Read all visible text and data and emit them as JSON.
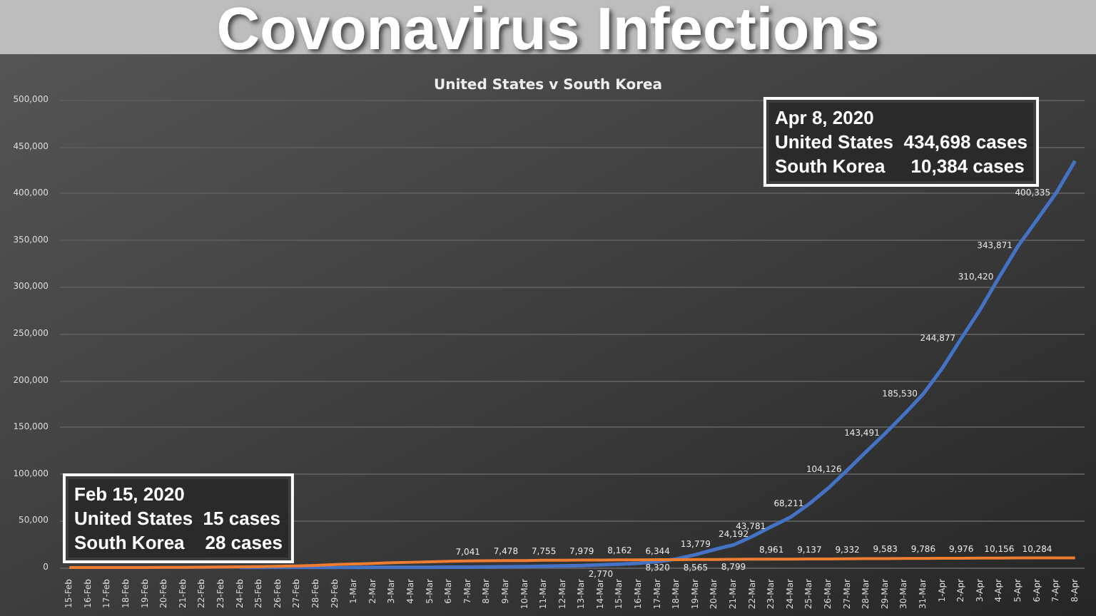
{
  "chart_data": {
    "type": "line",
    "title": "Covonavirus Infections",
    "subtitle": "United States v South Korea",
    "categories": [
      "15-Feb",
      "16-Feb",
      "17-Feb",
      "18-Feb",
      "19-Feb",
      "20-Feb",
      "21-Feb",
      "22-Feb",
      "23-Feb",
      "24-Feb",
      "25-Feb",
      "26-Feb",
      "27-Feb",
      "28-Feb",
      "29-Feb",
      "1-Mar",
      "2-Mar",
      "3-Mar",
      "4-Mar",
      "5-Mar",
      "6-Mar",
      "7-Mar",
      "8-Mar",
      "9-Mar",
      "10-Mar",
      "11-Mar",
      "12-Mar",
      "13-Mar",
      "14-Mar",
      "15-Mar",
      "16-Mar",
      "17-Mar",
      "18-Mar",
      "19-Mar",
      "20-Mar",
      "21-Mar",
      "22-Mar",
      "23-Mar",
      "24-Mar",
      "25-Mar",
      "26-Mar",
      "27-Mar",
      "28-Mar",
      "29-Mar",
      "30-Mar",
      "31-Mar",
      "1-Apr",
      "2-Apr",
      "3-Apr",
      "4-Apr",
      "5-Apr",
      "6-Apr",
      "7-Apr",
      "8-Apr"
    ],
    "series": [
      {
        "color": "#4472c4",
        "values": [
          null,
          null,
          null,
          null,
          null,
          null,
          null,
          null,
          null,
          53,
          53,
          59,
          60,
          62,
          70,
          76,
          101,
          122,
          153,
          221,
          319,
          435,
          541,
          704,
          994,
          1301,
          1630,
          2183,
          2770,
          3613,
          4596,
          6344,
          9197,
          13779,
          19273,
          24192,
          33276,
          43781,
          53740,
          68211,
          85000,
          104126,
          124000,
          143491,
          164000,
          185530,
          213000,
          244877,
          276000,
          310420,
          343871,
          372000,
          400335,
          434698
        ],
        "value_labels": [
          null,
          null,
          null,
          null,
          null,
          null,
          null,
          null,
          null,
          null,
          null,
          null,
          null,
          null,
          null,
          null,
          null,
          null,
          null,
          null,
          null,
          null,
          null,
          null,
          null,
          null,
          null,
          null,
          "2,770",
          null,
          null,
          "6,344",
          null,
          "13,779",
          null,
          "24,192",
          null,
          "43,781",
          null,
          "68,211",
          null,
          "104,126",
          null,
          "143,491",
          null,
          "185,530",
          null,
          "244,877",
          null,
          "310,420",
          "343,871",
          null,
          "400,335",
          null
        ]
      },
      {
        "color": "#ed7d31",
        "values": [
          28,
          29,
          30,
          31,
          51,
          104,
          204,
          433,
          602,
          833,
          977,
          1261,
          1766,
          2337,
          3150,
          3736,
          4335,
          5186,
          5621,
          6088,
          6593,
          7041,
          7314,
          7478,
          7513,
          7755,
          7869,
          7979,
          8086,
          8162,
          8236,
          8320,
          8413,
          8565,
          8652,
          8799,
          8897,
          8961,
          9037,
          9137,
          9241,
          9332,
          9478,
          9583,
          9661,
          9786,
          9887,
          9976,
          10062,
          10156,
          10237,
          10284,
          10331,
          10384
        ],
        "value_labels": [
          null,
          null,
          null,
          null,
          null,
          null,
          null,
          null,
          null,
          null,
          null,
          null,
          null,
          null,
          null,
          null,
          null,
          null,
          null,
          null,
          null,
          "7,041",
          null,
          "7,478",
          null,
          "7,755",
          null,
          "7,979",
          null,
          "8,162",
          null,
          "8,320",
          null,
          "8,565",
          null,
          "8,799",
          null,
          "8,961",
          null,
          "9,137",
          null,
          "9,332",
          null,
          "9,583",
          null,
          "9,786",
          null,
          "9,976",
          null,
          "10,156",
          null,
          "10,284",
          null,
          null
        ]
      }
    ],
    "ylim": [
      0,
      500000
    ],
    "yticks": [
      0,
      {
        "value": 50000,
        "label": "50,000"
      },
      {
        "value": 100000,
        "label": "100,000"
      },
      {
        "value": 150000,
        "label": "150,000"
      },
      {
        "value": 200000,
        "label": "200,000"
      },
      {
        "value": 250000,
        "label": "250,000"
      },
      {
        "value": 300000,
        "label": "300,000"
      },
      {
        "value": 350000,
        "label": "350,000"
      },
      {
        "value": 400000,
        "label": "400,000"
      },
      {
        "value": 450000,
        "label": "450,000"
      },
      {
        "value": 500000,
        "label": "500,000"
      }
    ],
    "grid": "y",
    "marker": "none",
    "annotations": [
      "Apr 8, 2020\nUnited States  434,698 cases\nSouth Korea     10,384 cases",
      "Feb 15, 2020\nUnited States  15 cases\nSouth Korea    28 cases"
    ]
  }
}
